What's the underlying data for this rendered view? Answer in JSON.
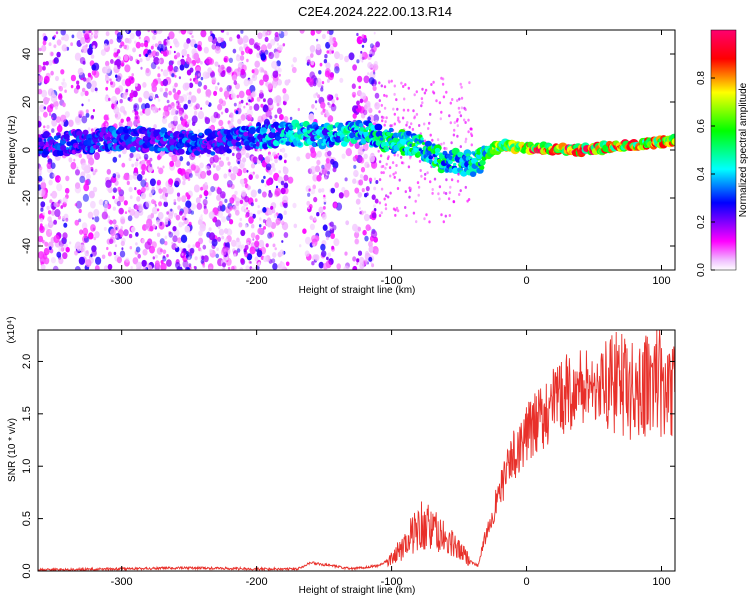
{
  "figure": {
    "title": "C2E4.2024.222.00.13.R14"
  },
  "chart_data": [
    {
      "type": "heatmap",
      "xlabel": "Height of straight line (km)",
      "ylabel": "Frequency (Hz)",
      "xlim": [
        -362,
        110
      ],
      "ylim": [
        -50,
        50
      ],
      "xticks": [
        -300,
        -200,
        -100,
        0,
        100
      ],
      "yticks": [
        -40,
        -20,
        0,
        20,
        40
      ],
      "grid": false,
      "colorbar": {
        "label": "Normalized spectral amplitude",
        "range": [
          0,
          1
        ],
        "ticks": [
          "0.0",
          "0.2",
          "0.4",
          "0.6",
          "0.8"
        ],
        "colors": [
          "#ffffff",
          "#ff00ff",
          "#0000ff",
          "#00ffff",
          "#00ff00",
          "#ffff00",
          "#ff0000"
        ]
      },
      "signal_trace": [
        {
          "x": -360,
          "f": 2,
          "amp": 0.3
        },
        {
          "x": -300,
          "f": 5,
          "amp": 0.35
        },
        {
          "x": -250,
          "f": 3,
          "amp": 0.35
        },
        {
          "x": -230,
          "f": 3,
          "amp": 0.3
        },
        {
          "x": -180,
          "f": 7,
          "amp": 0.45
        },
        {
          "x": -150,
          "f": 6,
          "amp": 0.45
        },
        {
          "x": -120,
          "f": 7,
          "amp": 0.5
        },
        {
          "x": -100,
          "f": 4,
          "amp": 0.55
        },
        {
          "x": -80,
          "f": 2,
          "amp": 0.55
        },
        {
          "x": -60,
          "f": -5,
          "amp": 0.55
        },
        {
          "x": -50,
          "f": -5,
          "amp": 0.5
        },
        {
          "x": -40,
          "f": -6,
          "amp": 0.5
        },
        {
          "x": -30,
          "f": -2,
          "amp": 0.6
        },
        {
          "x": -20,
          "f": 2,
          "amp": 0.7
        },
        {
          "x": 0,
          "f": 1,
          "amp": 0.9
        },
        {
          "x": 40,
          "f": 0,
          "amp": 0.95
        },
        {
          "x": 80,
          "f": 2,
          "amp": 0.85
        },
        {
          "x": 110,
          "f": 4,
          "amp": 0.8
        }
      ]
    },
    {
      "type": "line",
      "xlabel": "Height of straight line (km)",
      "ylabel": "SNR (10 * v/v)",
      "yscale_note": "(x10⁴)",
      "xlim": [
        -362,
        110
      ],
      "ylim": [
        0,
        2.3
      ],
      "xticks": [
        -300,
        -200,
        -100,
        0,
        100
      ],
      "yticks": [
        0.0,
        0.5,
        1.0,
        1.5,
        2.0
      ],
      "grid": false,
      "series": [
        {
          "color": "#e8302a",
          "x": [
            -362,
            -300,
            -250,
            -200,
            -170,
            -160,
            -150,
            -130,
            -110,
            -100,
            -90,
            -80,
            -70,
            -60,
            -50,
            -40,
            -36,
            -30,
            -20,
            -10,
            0,
            10,
            20,
            30,
            40,
            50,
            60,
            70,
            80,
            90,
            100,
            110
          ],
          "y": [
            0.01,
            0.02,
            0.03,
            0.02,
            0.02,
            0.08,
            0.06,
            0.02,
            0.05,
            0.12,
            0.25,
            0.45,
            0.4,
            0.3,
            0.2,
            0.08,
            0.05,
            0.35,
            0.75,
            1.1,
            1.3,
            1.45,
            1.6,
            1.7,
            1.75,
            1.78,
            1.8,
            1.78,
            1.7,
            1.8,
            1.75,
            1.7
          ]
        }
      ]
    }
  ]
}
